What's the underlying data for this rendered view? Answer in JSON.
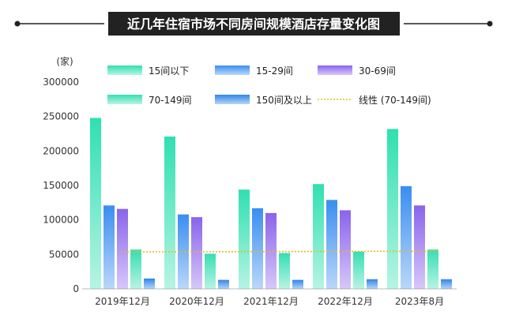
{
  "chart_data": {
    "type": "bar",
    "title": "近几年住宿市场不同房间规模酒店存量变化图",
    "ylabel": "(家)",
    "ylim": [
      0,
      300000
    ],
    "yticks": [
      "0",
      "50000",
      "100000",
      "150000",
      "200000",
      "250000",
      "300000"
    ],
    "categories": [
      "2019年12月",
      "2020年12月",
      "2021年12月",
      "2022年12月",
      "2023年8月"
    ],
    "grid": false,
    "legend_position": "top",
    "series": [
      {
        "name": "15间以下",
        "values": [
          248000,
          221000,
          144000,
          152000,
          232000
        ],
        "color": "#2fe0b0"
      },
      {
        "name": "15-29间",
        "values": [
          121000,
          108000,
          117000,
          129000,
          149000
        ],
        "color": "#3a8ef0"
      },
      {
        "name": "30-69间",
        "values": [
          116000,
          104000,
          110000,
          114000,
          121000
        ],
        "color": "#8a63ec"
      },
      {
        "name": "70-149间",
        "values": [
          57000,
          51000,
          52000,
          54000,
          57000
        ],
        "color": "#36deb2"
      },
      {
        "name": "150间及以上",
        "values": [
          15000,
          13000,
          13000,
          14000,
          14000
        ],
        "color": "#2f86e8"
      }
    ],
    "trendline": {
      "name": "线性 (70-149间)",
      "color": "#e6bd1e",
      "start": 53700,
      "end": 54600
    }
  }
}
